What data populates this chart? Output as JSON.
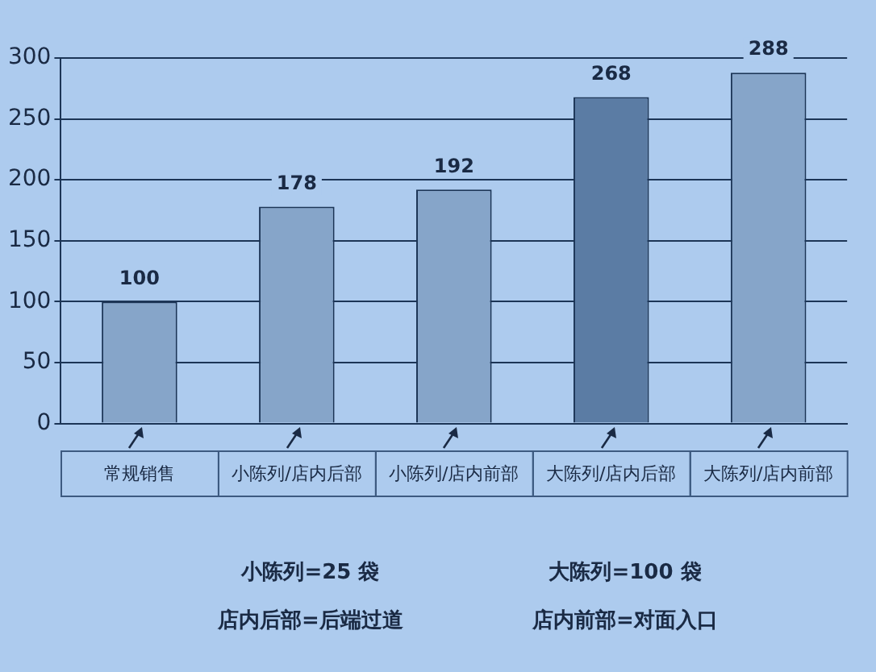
{
  "chart_data": {
    "type": "bar",
    "categories": [
      "常规销售",
      "小陈列/店内后部",
      "小陈列/店内前部",
      "大陈列/店内后部",
      "大陈列/店内前部"
    ],
    "values": [
      100,
      178,
      192,
      268,
      288
    ],
    "colors": [
      "#86a5c9",
      "#86a5c9",
      "#86a5c9",
      "#5b7ca4",
      "#86a5c9"
    ],
    "ylim": [
      0,
      300
    ],
    "yticks": [
      0,
      50,
      100,
      150,
      200,
      250,
      300
    ],
    "grid": "y",
    "data_labels": true,
    "legend": false,
    "annotations": [
      "小陈列=25 袋",
      "大陈列=100 袋",
      "店内后部=后端过道",
      "店内前部=对面入口"
    ]
  }
}
